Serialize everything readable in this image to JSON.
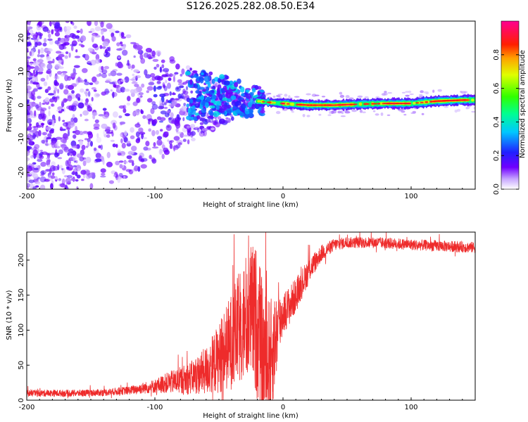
{
  "page_title": "S126.2025.282.08.50.E34",
  "colors": {
    "snr_line": "#ee2b2b",
    "track": "#ff3030",
    "axis": "#000000"
  },
  "chart_data": [
    {
      "type": "heatmap",
      "title": "S126.2025.282.08.50.E34",
      "xlabel": "Height of straight line (km)",
      "ylabel": "Frequency (Hz)",
      "xlim": [
        -200,
        150
      ],
      "ylim": [
        -25,
        25
      ],
      "xticks": [
        -200,
        -100,
        0,
        100
      ],
      "xtick_labels": [
        "-200",
        "-100",
        "0",
        "100"
      ],
      "yticks": [
        20,
        10,
        0,
        -10,
        -20
      ],
      "ytick_labels": [
        "20",
        "10",
        "0",
        "-10",
        "-20"
      ],
      "colorbar": {
        "label": "Normalized spectral amplitude",
        "range": [
          0,
          1
        ],
        "ticks": [
          0,
          0.2,
          0.4,
          0.6,
          0.8
        ],
        "tick_labels": [
          "0.0",
          "0.2",
          "0.4",
          "0.6",
          "0.8"
        ],
        "colormap": "rainbow (white-purple-blue-cyan-green-yellow-red-magenta)"
      },
      "description_points": {
        "track_x": [
          -40,
          -30,
          -20,
          -10,
          0,
          10,
          20,
          40,
          60,
          80,
          100,
          120,
          140,
          150
        ],
        "track_y": [
          3,
          1.5,
          1.2,
          0.8,
          0.5,
          0.2,
          0,
          0,
          0.3,
          0.5,
          0.5,
          1.2,
          1.5,
          1.5
        ]
      }
    },
    {
      "type": "line",
      "xlabel": "Height of straight line (km)",
      "ylabel": "SNR (10 * v/v)",
      "xlim": [
        -200,
        150
      ],
      "ylim": [
        0,
        240
      ],
      "xticks": [
        -200,
        -100,
        0,
        100
      ],
      "xtick_labels": [
        "-200",
        "-100",
        "0",
        "100"
      ],
      "yticks": [
        0,
        50,
        100,
        150,
        200
      ],
      "ytick_labels": [
        "0",
        "50",
        "100",
        "150",
        "200"
      ],
      "series": [
        {
          "name": "SNR",
          "x": [
            -200,
            -180,
            -160,
            -140,
            -120,
            -100,
            -90,
            -80,
            -70,
            -60,
            -50,
            -40,
            -35,
            -30,
            -25,
            -20,
            -15,
            -10,
            -5,
            0,
            5,
            10,
            20,
            30,
            40,
            50,
            75,
            100,
            125,
            150
          ],
          "y_mean": [
            10,
            10,
            10,
            11,
            14,
            20,
            25,
            28,
            33,
            42,
            60,
            85,
            100,
            115,
            125,
            110,
            60,
            55,
            95,
            125,
            135,
            150,
            185,
            210,
            222,
            225,
            225,
            222,
            220,
            218
          ],
          "y_spread": [
            5,
            5,
            5,
            5,
            6,
            10,
            15,
            20,
            25,
            35,
            50,
            70,
            80,
            90,
            100,
            110,
            95,
            90,
            60,
            30,
            28,
            25,
            18,
            12,
            9,
            8,
            8,
            8,
            8,
            8
          ]
        }
      ]
    }
  ]
}
